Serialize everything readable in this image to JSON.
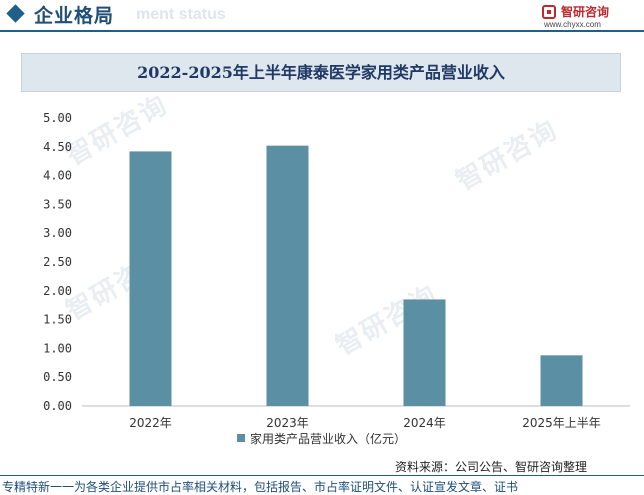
{
  "header": {
    "section_title": "企业格局",
    "section_ghost": "ment status",
    "logo_name": "智研咨询",
    "logo_url": "www.chyxx.com"
  },
  "watermark": "智研咨询",
  "chart_data": {
    "type": "bar",
    "title": "2022-2025年上半年康泰医学家用类产品营业收入",
    "categories": [
      "2022年",
      "2023年",
      "2024年",
      "2025年上半年"
    ],
    "series": [
      {
        "name": "家用类产品营业收入（亿元）",
        "values": [
          4.42,
          4.52,
          1.85,
          0.88
        ]
      }
    ],
    "ylim": [
      0,
      5
    ],
    "yticks": [
      "0.00",
      "0.50",
      "1.00",
      "1.50",
      "2.00",
      "2.50",
      "3.00",
      "3.50",
      "4.00",
      "4.50",
      "5.00"
    ],
    "bar_color": "#5b8fa3",
    "grid": false,
    "legend_position": "bottom"
  },
  "source": "资料来源：公司公告、智研咨询整理",
  "footer": "专精特新一一为各类企业提供市占率相关材料，包括报告、市占率证明文件、认证宣发文章、证书"
}
